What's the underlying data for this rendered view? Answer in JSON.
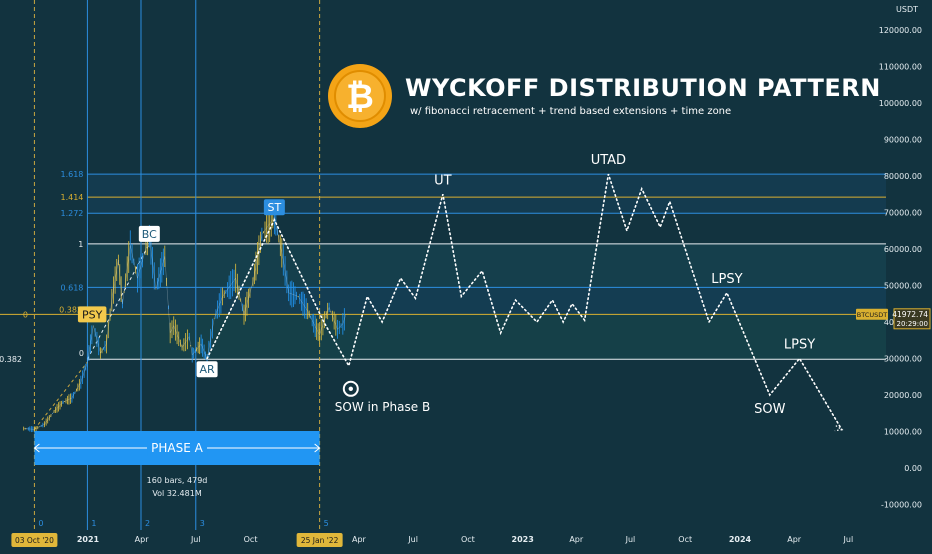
{
  "chart_data": {
    "type": "line",
    "symbol": "BTCUSDT",
    "currency": "USDT",
    "title": "WYCKOFF DISTRIBUTION PATTERN",
    "subtitle": "w/ fibonacci retracement + trend based extensions + time zone",
    "ylim": [
      -12000,
      130000
    ],
    "y_ticks": [
      120000,
      110000,
      100000,
      90000,
      80000,
      70000,
      60000,
      50000,
      40000,
      30000,
      20000,
      10000,
      0,
      -10000
    ],
    "y_tick_labels": [
      "120000.00",
      "110000.00",
      "100000.00",
      "90000.00",
      "80000.00",
      "70000.00",
      "60000.00",
      "50000.00",
      "40000.00",
      "30000.00",
      "20000.00",
      "10000.00",
      "0.00",
      "-10000.00"
    ],
    "x_ticks": [
      {
        "date": "2021-01-01",
        "label": "2021",
        "bold": true
      },
      {
        "date": "2021-04-01",
        "label": "Apr",
        "bold": false
      },
      {
        "date": "2021-07-01",
        "label": "Jul",
        "bold": false
      },
      {
        "date": "2021-10-01",
        "label": "Oct",
        "bold": false
      },
      {
        "date": "2022-04-01",
        "label": "Apr",
        "bold": false
      },
      {
        "date": "2022-07-01",
        "label": "Jul",
        "bold": false
      },
      {
        "date": "2022-10-01",
        "label": "Oct",
        "bold": false
      },
      {
        "date": "2023-01-01",
        "label": "2023",
        "bold": true
      },
      {
        "date": "2023-04-01",
        "label": "Apr",
        "bold": false
      },
      {
        "date": "2023-07-01",
        "label": "Jul",
        "bold": false
      },
      {
        "date": "2023-10-01",
        "label": "Oct",
        "bold": false
      },
      {
        "date": "2024-01-01",
        "label": "2024",
        "bold": true
      },
      {
        "date": "2024-04-01",
        "label": "Apr",
        "bold": false
      },
      {
        "date": "2024-07-01",
        "label": "Jul",
        "bold": false
      }
    ],
    "x_badges": [
      {
        "date": "2020-10-03",
        "label": "03 Oct '20"
      },
      {
        "date": "2022-01-25",
        "label": "25 Jan '22"
      }
    ],
    "last_price": {
      "value": 41972.74,
      "label": "41972.74",
      "countdown": "20:29:00",
      "tag": "BTCUSDT"
    },
    "time_zones": [
      {
        "date": "2020-10-03",
        "label": "0"
      },
      {
        "date": "2020-12-31",
        "label": "1"
      },
      {
        "date": "2021-03-31",
        "label": "2"
      },
      {
        "date": "2021-07-01",
        "label": "3"
      },
      {
        "date": "2022-01-25",
        "label": "5"
      }
    ],
    "fib_levels": [
      {
        "label": "1.618",
        "value": 80500,
        "color": "#2c8ee0"
      },
      {
        "label": "1.414",
        "value": 74200,
        "color": "#d9b030"
      },
      {
        "label": "1.272",
        "value": 69800,
        "color": "#2c8ee0"
      },
      {
        "label": "1",
        "value": 61400,
        "color": "#e8eef2"
      },
      {
        "label": "0.618",
        "value": 49500,
        "color": "#2c8ee0"
      },
      {
        "label": "0.382",
        "value": 42100,
        "color": "#d9b030"
      },
      {
        "label": "0",
        "value": 42100,
        "color": "#d9b030"
      },
      {
        "label": "0.382",
        "value": 29800,
        "color": "#e8eef2"
      },
      {
        "label": "0",
        "value": 29800,
        "color": "#e8eef2"
      }
    ],
    "price_series": [
      {
        "date": "2020-09-15",
        "close": 10800
      },
      {
        "date": "2020-10-03",
        "close": 10600
      },
      {
        "date": "2020-10-20",
        "close": 12000
      },
      {
        "date": "2020-11-05",
        "close": 15500
      },
      {
        "date": "2020-11-20",
        "close": 18000
      },
      {
        "date": "2020-12-05",
        "close": 19200
      },
      {
        "date": "2020-12-20",
        "close": 23500
      },
      {
        "date": "2020-12-31",
        "close": 29000
      },
      {
        "date": "2021-01-10",
        "close": 39000
      },
      {
        "date": "2021-01-22",
        "close": 31500
      },
      {
        "date": "2021-02-01",
        "close": 34000
      },
      {
        "date": "2021-02-10",
        "close": 46000
      },
      {
        "date": "2021-02-21",
        "close": 57000
      },
      {
        "date": "2021-02-28",
        "close": 45000
      },
      {
        "date": "2021-03-13",
        "close": 61000
      },
      {
        "date": "2021-03-25",
        "close": 52000
      },
      {
        "date": "2021-04-14",
        "close": 63500
      },
      {
        "date": "2021-04-25",
        "close": 49000
      },
      {
        "date": "2021-05-10",
        "close": 58000
      },
      {
        "date": "2021-05-19",
        "close": 37000
      },
      {
        "date": "2021-05-25",
        "close": 39000
      },
      {
        "date": "2021-06-08",
        "close": 33000
      },
      {
        "date": "2021-06-20",
        "close": 36000
      },
      {
        "date": "2021-06-25",
        "close": 31000
      },
      {
        "date": "2021-07-10",
        "close": 34000
      },
      {
        "date": "2021-07-20",
        "close": 29800
      },
      {
        "date": "2021-08-01",
        "close": 41000
      },
      {
        "date": "2021-08-15",
        "close": 47000
      },
      {
        "date": "2021-09-06",
        "close": 52000
      },
      {
        "date": "2021-09-20",
        "close": 42000
      },
      {
        "date": "2021-10-05",
        "close": 51000
      },
      {
        "date": "2021-10-20",
        "close": 64000
      },
      {
        "date": "2021-11-10",
        "close": 68700
      },
      {
        "date": "2021-11-25",
        "close": 57000
      },
      {
        "date": "2021-12-04",
        "close": 48000
      },
      {
        "date": "2021-12-20",
        "close": 47000
      },
      {
        "date": "2022-01-05",
        "close": 43000
      },
      {
        "date": "2022-01-20",
        "close": 38000
      },
      {
        "date": "2022-01-25",
        "close": 36500
      },
      {
        "date": "2022-02-05",
        "close": 42000
      },
      {
        "date": "2022-02-10",
        "close": 44000
      },
      {
        "date": "2022-02-24",
        "close": 38000
      },
      {
        "date": "2022-03-05",
        "close": 39500
      },
      {
        "date": "2022-03-10",
        "close": 41972.74
      }
    ],
    "projection_path": [
      {
        "date": "2021-07-20",
        "value": 30000
      },
      {
        "date": "2021-11-10",
        "value": 68000
      },
      {
        "date": "2022-02-01",
        "value": 40000
      },
      {
        "date": "2022-03-15",
        "value": 28000
      },
      {
        "date": "2022-04-15",
        "value": 47000
      },
      {
        "date": "2022-05-10",
        "value": 40000
      },
      {
        "date": "2022-06-10",
        "value": 52000
      },
      {
        "date": "2022-07-05",
        "value": 46500
      },
      {
        "date": "2022-08-20",
        "value": 75000
      },
      {
        "date": "2022-09-20",
        "value": 47000
      },
      {
        "date": "2022-10-25",
        "value": 54000
      },
      {
        "date": "2022-11-25",
        "value": 37000
      },
      {
        "date": "2022-12-20",
        "value": 46000
      },
      {
        "date": "2023-01-25",
        "value": 40000
      },
      {
        "date": "2023-02-20",
        "value": 46000
      },
      {
        "date": "2023-03-10",
        "value": 40000
      },
      {
        "date": "2023-03-25",
        "value": 45000
      },
      {
        "date": "2023-04-15",
        "value": 40500
      },
      {
        "date": "2023-05-25",
        "value": 80500
      },
      {
        "date": "2023-06-25",
        "value": 65000
      },
      {
        "date": "2023-07-20",
        "value": 76500
      },
      {
        "date": "2023-08-20",
        "value": 66000
      },
      {
        "date": "2023-09-05",
        "value": 73000
      },
      {
        "date": "2023-11-10",
        "value": 40000
      },
      {
        "date": "2023-12-10",
        "value": 48000
      },
      {
        "date": "2024-02-20",
        "value": 20000
      },
      {
        "date": "2024-04-10",
        "value": 30000
      },
      {
        "date": "2024-06-20",
        "value": 10500
      }
    ],
    "entry_line": [
      {
        "date": "2020-10-03",
        "value": 10600
      },
      {
        "date": "2020-12-31",
        "value": 29000
      }
    ],
    "rally_line": [
      {
        "date": "2020-12-31",
        "value": 29800
      },
      {
        "date": "2021-04-14",
        "value": 61400
      }
    ],
    "wyckoff_labels": [
      {
        "text": "PSY",
        "date": "2021-01-08",
        "value": 42100,
        "style": "yellow-box"
      },
      {
        "text": "BC",
        "date": "2021-04-14",
        "value": 61400,
        "style": "white-box"
      },
      {
        "text": "AR",
        "date": "2021-07-20",
        "value": 29800,
        "style": "white-box-below"
      },
      {
        "text": "ST",
        "date": "2021-11-10",
        "value": 68700,
        "style": "blue-box"
      },
      {
        "text": "UT",
        "date": "2022-08-20",
        "value": 75000,
        "style": "plain"
      },
      {
        "text": "UTAD",
        "date": "2023-05-25",
        "value": 80500,
        "style": "plain"
      },
      {
        "text": "LPSY",
        "date": "2023-12-10",
        "value": 48000,
        "style": "plain"
      },
      {
        "text": "LPSY",
        "date": "2024-04-10",
        "value": 30000,
        "style": "plain"
      },
      {
        "text": "SOW",
        "date": "2024-02-20",
        "value": 20000,
        "style": "plain-below"
      },
      {
        "text": "SOW in Phase B",
        "date": "2022-03-15",
        "value": 28000,
        "style": "target"
      }
    ],
    "phase": {
      "label": "PHASE A",
      "start": "2020-10-03",
      "end": "2022-01-25",
      "stats": [
        "160 bars, 479d",
        "Vol 32.481M"
      ]
    }
  },
  "colors": {
    "background": "#12333f",
    "accent_blue": "#2c8ee0",
    "fib_gold": "#d9b030",
    "bitcoin_orange": "#f4a416",
    "candle_up": "#2196f3",
    "candle_down": "#e0c040"
  },
  "logo": {
    "symbol": "bitcoin-logo",
    "glyph": "₿"
  }
}
